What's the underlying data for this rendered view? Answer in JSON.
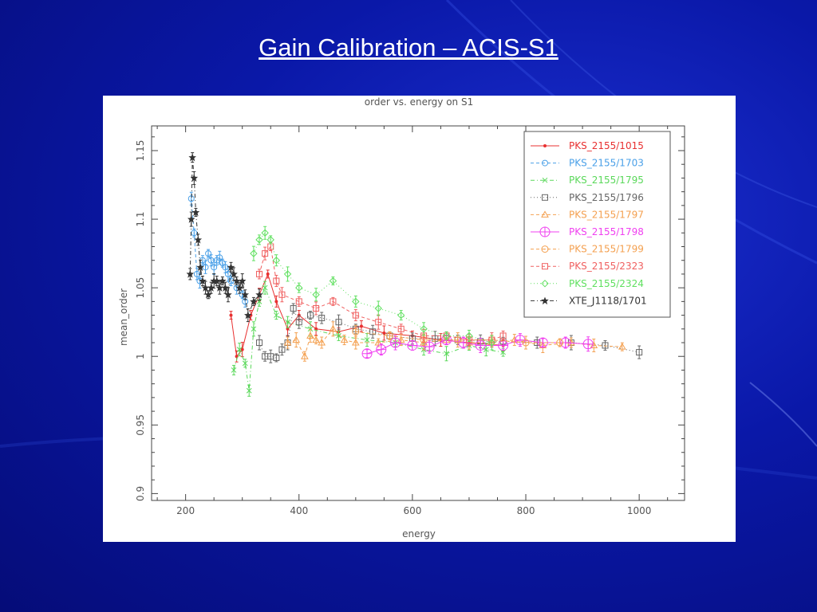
{
  "slide": {
    "title": "Gain Calibration – ACIS-S1"
  },
  "chart_data": {
    "type": "scatter",
    "title": "order vs. energy on S1",
    "xlabel": "energy",
    "ylabel": "mean_order",
    "xlim": [
      140,
      1080
    ],
    "ylim": [
      0.895,
      1.168
    ],
    "xticks": [
      200,
      400,
      600,
      800,
      1000
    ],
    "yticks": [
      0.9,
      0.95,
      1,
      1.05,
      1.1,
      1.15
    ],
    "xtick_labels": [
      "200",
      "400",
      "600",
      "800",
      "1000"
    ],
    "ytick_labels": [
      "0.9",
      "0.95",
      "1",
      "1.05",
      "1.1",
      "1.15"
    ],
    "grid": false,
    "legend_position": "top-right",
    "series": [
      {
        "name": "PKS_2155/1015",
        "color": "#e83030",
        "marker": "dot",
        "dash": "solid",
        "x": [
          280,
          290,
          300,
          315,
          330,
          345,
          360,
          380,
          400,
          430,
          470,
          510,
          550,
          600,
          650,
          700,
          760
        ],
        "y": [
          1.03,
          1.0,
          1.005,
          1.03,
          1.045,
          1.06,
          1.04,
          1.02,
          1.03,
          1.02,
          1.018,
          1.022,
          1.017,
          1.015,
          1.012,
          1.01,
          1.008
        ]
      },
      {
        "name": "PKS_2155/1703",
        "color": "#4aa0e8",
        "marker": "circle",
        "dash": "dashed",
        "x": [
          210,
          215,
          220,
          225,
          230,
          235,
          240,
          245,
          250,
          255,
          260,
          265,
          270,
          275,
          280,
          290,
          300,
          305
        ],
        "y": [
          1.115,
          1.09,
          1.06,
          1.055,
          1.07,
          1.065,
          1.075,
          1.07,
          1.065,
          1.07,
          1.072,
          1.068,
          1.065,
          1.06,
          1.055,
          1.05,
          1.045,
          1.04
        ]
      },
      {
        "name": "PKS_2155/1795",
        "color": "#5ad85a",
        "marker": "x",
        "dash": "dashdot",
        "x": [
          285,
          295,
          305,
          312,
          320,
          330,
          340,
          360,
          380,
          420,
          470,
          520,
          570,
          620,
          660,
          700,
          730,
          760
        ],
        "y": [
          0.99,
          1.005,
          0.995,
          0.975,
          1.02,
          1.04,
          1.05,
          1.03,
          1.025,
          1.02,
          1.015,
          1.012,
          1.01,
          1.005,
          1.002,
          1.008,
          1.005,
          1.003
        ]
      },
      {
        "name": "PKS_2155/1796",
        "color": "#666666",
        "marker": "square",
        "dash": "dotted",
        "x": [
          330,
          340,
          350,
          360,
          370,
          380,
          390,
          400,
          420,
          440,
          470,
          500,
          530,
          560,
          600,
          640,
          680,
          720,
          760,
          820,
          880,
          940,
          1000
        ],
        "y": [
          1.01,
          1.0,
          1.0,
          0.999,
          1.005,
          1.01,
          1.035,
          1.025,
          1.03,
          1.028,
          1.025,
          1.02,
          1.018,
          1.015,
          1.013,
          1.013,
          1.012,
          1.011,
          1.011,
          1.01,
          1.01,
          1.008,
          1.003
        ]
      },
      {
        "name": "PKS_2155/1797",
        "color": "#f4a050",
        "marker": "triangle",
        "dash": "dashed",
        "x": [
          380,
          395,
          410,
          420,
          430,
          440,
          460,
          480,
          500,
          540,
          580,
          620,
          660,
          700,
          740,
          780,
          830,
          880,
          920,
          970
        ],
        "y": [
          1.01,
          1.012,
          1.0,
          1.015,
          1.012,
          1.01,
          1.02,
          1.012,
          1.01,
          1.01,
          1.012,
          1.01,
          1.012,
          1.01,
          1.01,
          1.012,
          1.008,
          1.01,
          1.008,
          1.007
        ]
      },
      {
        "name": "PKS_2155/1798",
        "color": "#f040f0",
        "marker": "circle-plus",
        "dash": "solid",
        "x": [
          520,
          545,
          570,
          600,
          630,
          660,
          690,
          720,
          760,
          790,
          830,
          870,
          910
        ],
        "y": [
          1.002,
          1.005,
          1.01,
          1.008,
          1.007,
          1.012,
          1.01,
          1.008,
          1.008,
          1.012,
          1.01,
          1.01,
          1.009
        ]
      },
      {
        "name": "PKS_2155/1799",
        "color": "#f4a050",
        "marker": "circle-dot",
        "dash": "dashed",
        "x": [
          500,
          560,
          620,
          680,
          740,
          800,
          860
        ],
        "y": [
          1.018,
          1.015,
          1.012,
          1.012,
          1.012,
          1.01,
          1.01
        ]
      },
      {
        "name": "PKS_2155/2323",
        "color": "#f06060",
        "marker": "square",
        "dash": "dashed",
        "x": [
          330,
          340,
          350,
          360,
          370,
          400,
          430,
          460,
          500,
          540,
          580,
          620,
          660,
          700,
          740,
          760
        ],
        "y": [
          1.06,
          1.075,
          1.08,
          1.055,
          1.045,
          1.04,
          1.035,
          1.04,
          1.03,
          1.025,
          1.02,
          1.015,
          1.015,
          1.012,
          1.012,
          1.015
        ]
      },
      {
        "name": "PKS_2155/2324",
        "color": "#60e060",
        "marker": "diamond",
        "dash": "dotted",
        "x": [
          320,
          330,
          340,
          350,
          360,
          380,
          400,
          430,
          460,
          500,
          540,
          580,
          620,
          660,
          700,
          740
        ],
        "y": [
          1.075,
          1.085,
          1.09,
          1.085,
          1.07,
          1.06,
          1.05,
          1.045,
          1.055,
          1.04,
          1.035,
          1.03,
          1.02,
          1.015,
          1.015,
          1.01
        ]
      },
      {
        "name": "XTE_J1118/1701",
        "color": "#333333",
        "marker": "star",
        "dash": "dashdot",
        "x": [
          208,
          210,
          212,
          215,
          218,
          222,
          226,
          230,
          235,
          240,
          245,
          250,
          255,
          260,
          265,
          270,
          275,
          280,
          285,
          290,
          295,
          300,
          305,
          310,
          320,
          330
        ],
        "y": [
          1.06,
          1.1,
          1.145,
          1.13,
          1.105,
          1.085,
          1.065,
          1.055,
          1.05,
          1.045,
          1.05,
          1.055,
          1.055,
          1.05,
          1.055,
          1.05,
          1.045,
          1.065,
          1.06,
          1.055,
          1.05,
          1.055,
          1.045,
          1.03,
          1.04,
          1.045
        ]
      }
    ]
  }
}
